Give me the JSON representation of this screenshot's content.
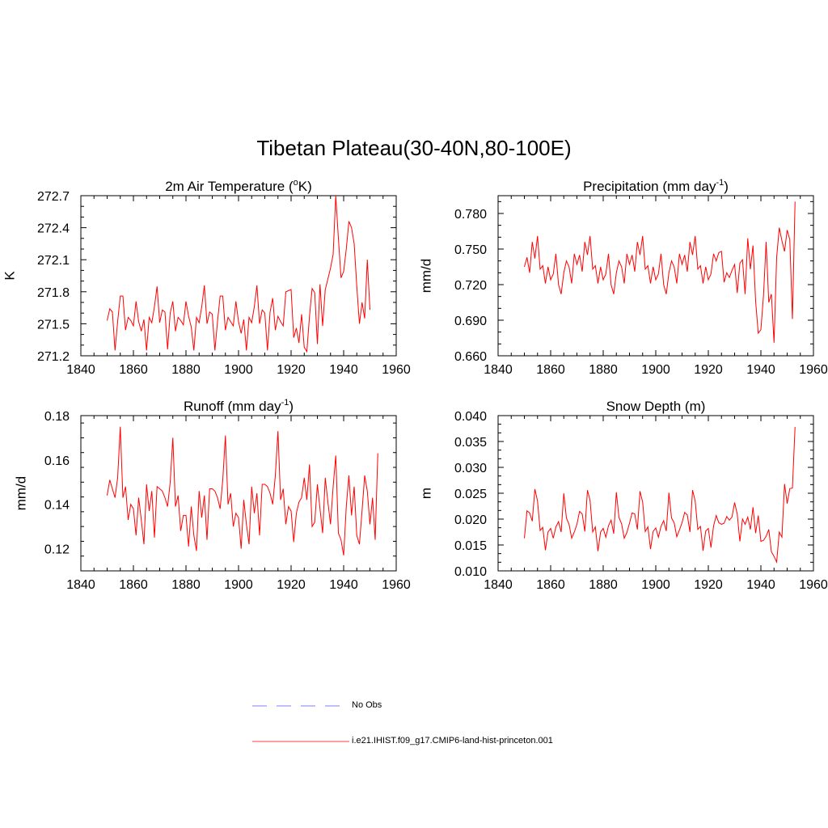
{
  "title": "Tibetan Plateau(30-40N,80-100E)",
  "chart_data": [
    {
      "type": "line",
      "title": "2m Air Temperature (",
      "title_sup": "o",
      "title_after": "K)",
      "ylabel": "K",
      "xlim": [
        1840,
        1960
      ],
      "ylim": [
        271.2,
        272.7
      ],
      "xticks": [
        "1840",
        "1860",
        "1880",
        "1900",
        "1920",
        "1940",
        "1960"
      ],
      "yticks": [
        "271.2",
        "271.5",
        "271.8",
        "272.1",
        "272.4",
        "272.7"
      ],
      "x_start": 1850,
      "series_color": "#ff0000",
      "values": [
        271.53,
        271.64,
        271.61,
        271.25,
        271.52,
        271.76,
        271.76,
        271.44,
        271.56,
        271.53,
        271.48,
        271.71,
        271.52,
        271.43,
        271.54,
        271.25,
        271.56,
        271.51,
        271.66,
        271.85,
        271.51,
        271.63,
        271.61,
        271.26,
        271.6,
        271.71,
        271.43,
        271.56,
        271.53,
        271.49,
        271.71,
        271.57,
        271.47,
        271.25,
        271.56,
        271.51,
        271.66,
        271.86,
        271.5,
        271.61,
        271.59,
        271.25,
        271.52,
        271.76,
        271.76,
        271.44,
        271.56,
        271.52,
        271.48,
        271.71,
        271.52,
        271.41,
        271.54,
        271.25,
        271.56,
        271.51,
        271.66,
        271.86,
        271.5,
        271.63,
        271.6,
        271.25,
        271.61,
        271.74,
        271.44,
        271.57,
        271.52,
        271.48,
        271.8,
        271.81,
        271.82,
        271.37,
        271.46,
        271.32,
        271.59,
        271.28,
        271.24,
        271.57,
        271.83,
        271.79,
        271.31,
        271.87,
        271.48,
        271.82,
        271.92,
        272.02,
        272.15,
        272.7,
        272.3,
        271.93,
        271.99,
        272.2,
        272.46,
        272.4,
        272.25,
        271.85,
        271.5,
        271.7,
        271.55,
        272.1,
        271.63
      ]
    },
    {
      "type": "line",
      "title": "Precipitation (mm day",
      "title_sup": "-1",
      "title_after": ")",
      "ylabel": "mm/d",
      "xlim": [
        1840,
        1960
      ],
      "ylim": [
        0.66,
        0.795
      ],
      "ytick_values": [
        0.66,
        0.69,
        0.72,
        0.75,
        0.78
      ],
      "xticks": [
        "1840",
        "1860",
        "1880",
        "1900",
        "1920",
        "1940",
        "1960"
      ],
      "yticks": [
        "0.660",
        "0.690",
        "0.720",
        "0.750",
        "0.780"
      ],
      "x_start": 1850,
      "series_color": "#ff0000",
      "values": [
        0.735,
        0.743,
        0.73,
        0.756,
        0.742,
        0.761,
        0.733,
        0.736,
        0.721,
        0.735,
        0.724,
        0.729,
        0.746,
        0.72,
        0.712,
        0.73,
        0.74,
        0.735,
        0.721,
        0.746,
        0.737,
        0.745,
        0.731,
        0.756,
        0.745,
        0.761,
        0.733,
        0.736,
        0.721,
        0.735,
        0.724,
        0.729,
        0.746,
        0.72,
        0.712,
        0.73,
        0.74,
        0.735,
        0.721,
        0.746,
        0.737,
        0.745,
        0.731,
        0.756,
        0.745,
        0.761,
        0.733,
        0.736,
        0.721,
        0.735,
        0.724,
        0.729,
        0.746,
        0.72,
        0.712,
        0.73,
        0.74,
        0.735,
        0.721,
        0.746,
        0.737,
        0.745,
        0.731,
        0.756,
        0.745,
        0.761,
        0.733,
        0.736,
        0.721,
        0.735,
        0.724,
        0.729,
        0.746,
        0.74,
        0.747,
        0.748,
        0.722,
        0.73,
        0.726,
        0.732,
        0.737,
        0.713,
        0.738,
        0.741,
        0.712,
        0.759,
        0.733,
        0.753,
        0.706,
        0.679,
        0.682,
        0.711,
        0.756,
        0.705,
        0.712,
        0.671,
        0.743,
        0.768,
        0.757,
        0.748,
        0.766,
        0.758,
        0.691,
        0.79
      ]
    },
    {
      "type": "line",
      "title": "Runoff (mm day",
      "title_sup": "-1",
      "title_after": ")",
      "ylabel": "mm/d",
      "xlim": [
        1840,
        1960
      ],
      "ylim": [
        0.11,
        0.18
      ],
      "ytick_values": [
        0.12,
        0.14,
        0.16,
        0.18
      ],
      "xticks": [
        "1840",
        "1860",
        "1880",
        "1900",
        "1920",
        "1940",
        "1960"
      ],
      "yticks": [
        "0.12",
        "0.14",
        "0.16",
        "0.18"
      ],
      "x_start": 1850,
      "series_color": "#ff0000",
      "values": [
        0.144,
        0.151,
        0.147,
        0.143,
        0.152,
        0.175,
        0.143,
        0.148,
        0.133,
        0.14,
        0.138,
        0.126,
        0.143,
        0.133,
        0.122,
        0.149,
        0.137,
        0.146,
        0.125,
        0.148,
        0.147,
        0.146,
        0.143,
        0.139,
        0.15,
        0.17,
        0.139,
        0.144,
        0.128,
        0.135,
        0.135,
        0.121,
        0.139,
        0.126,
        0.119,
        0.146,
        0.134,
        0.144,
        0.124,
        0.147,
        0.147,
        0.146,
        0.143,
        0.138,
        0.151,
        0.171,
        0.14,
        0.145,
        0.13,
        0.136,
        0.134,
        0.12,
        0.142,
        0.131,
        0.122,
        0.148,
        0.136,
        0.145,
        0.126,
        0.149,
        0.149,
        0.148,
        0.145,
        0.14,
        0.153,
        0.173,
        0.142,
        0.147,
        0.131,
        0.139,
        0.137,
        0.123,
        0.136,
        0.141,
        0.143,
        0.152,
        0.142,
        0.158,
        0.13,
        0.132,
        0.149,
        0.138,
        0.127,
        0.152,
        0.141,
        0.131,
        0.148,
        0.162,
        0.127,
        0.124,
        0.117,
        0.139,
        0.153,
        0.135,
        0.148,
        0.126,
        0.122,
        0.137,
        0.153,
        0.146,
        0.131,
        0.143,
        0.124,
        0.163
      ]
    },
    {
      "type": "line",
      "title": "Snow Depth (m)",
      "title_sup": "",
      "title_after": "",
      "ylabel": "m",
      "xlim": [
        1840,
        1960
      ],
      "ylim": [
        0.01,
        0.04
      ],
      "ytick_values": [
        0.01,
        0.015,
        0.02,
        0.025,
        0.03,
        0.035,
        0.04
      ],
      "xticks": [
        "1840",
        "1860",
        "1880",
        "1900",
        "1920",
        "1940",
        "1960"
      ],
      "yticks": [
        "0.010",
        "0.015",
        "0.020",
        "0.025",
        "0.030",
        "0.035",
        "0.040"
      ],
      "x_start": 1850,
      "series_color": "#ff0000",
      "values": [
        0.0163,
        0.0216,
        0.0212,
        0.0196,
        0.0258,
        0.0235,
        0.0178,
        0.0184,
        0.014,
        0.0175,
        0.0182,
        0.0163,
        0.0185,
        0.0195,
        0.0175,
        0.025,
        0.0202,
        0.019,
        0.0163,
        0.0175,
        0.019,
        0.0215,
        0.021,
        0.0176,
        0.0256,
        0.0236,
        0.0175,
        0.0185,
        0.0138,
        0.0175,
        0.0182,
        0.0165,
        0.0187,
        0.0198,
        0.0172,
        0.0252,
        0.0203,
        0.0191,
        0.0163,
        0.0174,
        0.0192,
        0.0212,
        0.021,
        0.018,
        0.0254,
        0.0233,
        0.0176,
        0.0185,
        0.0142,
        0.0176,
        0.0183,
        0.0165,
        0.0186,
        0.0197,
        0.0177,
        0.0251,
        0.0202,
        0.0193,
        0.0166,
        0.0179,
        0.0193,
        0.0213,
        0.0208,
        0.0175,
        0.0256,
        0.0235,
        0.018,
        0.0186,
        0.0139,
        0.0177,
        0.0182,
        0.0145,
        0.0187,
        0.0207,
        0.0193,
        0.019,
        0.0192,
        0.0205,
        0.0198,
        0.0204,
        0.0232,
        0.021,
        0.0157,
        0.02,
        0.019,
        0.0204,
        0.018,
        0.0223,
        0.0173,
        0.0207,
        0.0157,
        0.0159,
        0.0167,
        0.018,
        0.0137,
        0.0128,
        0.0117,
        0.0175,
        0.0165,
        0.0268,
        0.023,
        0.0259,
        0.026,
        0.0378
      ]
    }
  ],
  "legend": [
    {
      "label": "No Obs",
      "color": "#9999ff",
      "style": "dashed"
    },
    {
      "label": "i.e21.IHIST.f09_g17.CMIP6-land-hist-princeton.001",
      "color": "#ff6666",
      "style": "solid"
    }
  ]
}
